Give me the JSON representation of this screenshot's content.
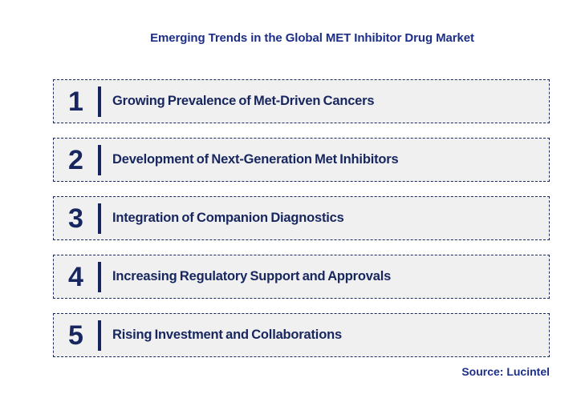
{
  "title": "Emerging Trends in the Global MET Inhibitor Drug Market",
  "trends": {
    "items": [
      {
        "number": "1",
        "label": "Growing Prevalence of Met-Driven Cancers"
      },
      {
        "number": "2",
        "label": "Development of Next-Generation Met Inhibitors"
      },
      {
        "number": "3",
        "label": "Integration of Companion Diagnostics"
      },
      {
        "number": "4",
        "label": "Increasing Regulatory Support and Approvals"
      },
      {
        "number": "5",
        "label": "Rising Investment and Collaborations"
      }
    ]
  },
  "source": "Source: Lucintel",
  "colors": {
    "title_text": "#1c2e87",
    "item_text": "#17265e",
    "accent_bar": "#15245c",
    "dashed_border": "#1b2a5e",
    "row_background": "#f0f0f0"
  }
}
